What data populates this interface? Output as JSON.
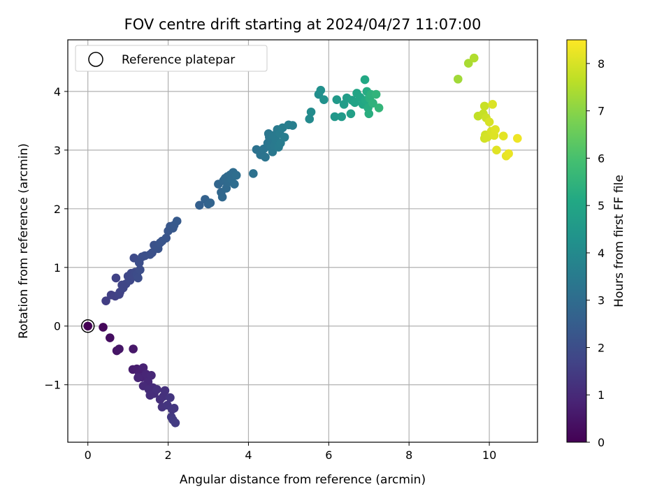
{
  "chart_data": {
    "type": "scatter",
    "title": "FOV centre drift starting at 2024/04/27 11:07:00",
    "xlabel": "Angular distance from reference (arcmin)",
    "ylabel": "Rotation from reference (arcmin)",
    "xlim": [
      -0.5,
      11.2
    ],
    "ylim": [
      -1.98,
      4.88
    ],
    "x_ticks": [
      0,
      2,
      4,
      6,
      8,
      10
    ],
    "y_ticks": [
      -1,
      0,
      1,
      2,
      3,
      4
    ],
    "x_tick_labels": [
      "0",
      "2",
      "4",
      "6",
      "8",
      "10"
    ],
    "y_tick_labels": [
      "−1",
      "0",
      "1",
      "2",
      "3",
      "4"
    ],
    "grid": true,
    "legend": {
      "position": "upper-left",
      "entries": [
        "Reference platepar"
      ]
    },
    "reference_point": {
      "x": 0,
      "y": 0,
      "label": "Reference platepar",
      "marker": "open circle"
    },
    "colorbar": {
      "label": "Hours from first FF file",
      "min": 0,
      "max": 8.5,
      "ticks": [
        0,
        1,
        2,
        3,
        4,
        5,
        6,
        7,
        8
      ],
      "tick_labels": [
        "0",
        "1",
        "2",
        "3",
        "4",
        "5",
        "6",
        "7",
        "8"
      ],
      "colormap": "viridis"
    },
    "points": [
      [
        0.0,
        0.0,
        0.0
      ],
      [
        0.38,
        -0.02,
        0.15
      ],
      [
        0.55,
        -0.2,
        0.3
      ],
      [
        0.72,
        -0.42,
        0.45
      ],
      [
        0.78,
        -0.39,
        0.5
      ],
      [
        1.13,
        -0.39,
        0.55
      ],
      [
        1.12,
        -0.74,
        0.65
      ],
      [
        1.22,
        -0.73,
        0.7
      ],
      [
        1.28,
        -0.8,
        0.75
      ],
      [
        1.38,
        -0.71,
        0.8
      ],
      [
        1.35,
        -0.87,
        0.85
      ],
      [
        1.25,
        -0.88,
        0.9
      ],
      [
        1.45,
        -0.82,
        0.9
      ],
      [
        1.5,
        -0.95,
        0.95
      ],
      [
        1.58,
        -0.84,
        0.95
      ],
      [
        1.38,
        -1.02,
        1.0
      ],
      [
        1.52,
        -1.08,
        1.05
      ],
      [
        1.62,
        -1.05,
        1.05
      ],
      [
        1.55,
        -1.18,
        1.1
      ],
      [
        1.65,
        -1.15,
        1.1
      ],
      [
        1.72,
        -1.08,
        1.15
      ],
      [
        1.8,
        -1.25,
        1.15
      ],
      [
        1.88,
        -1.2,
        1.2
      ],
      [
        1.92,
        -1.1,
        1.2
      ],
      [
        1.85,
        -1.38,
        1.25
      ],
      [
        1.98,
        -1.35,
        1.3
      ],
      [
        2.05,
        -1.22,
        1.3
      ],
      [
        2.1,
        -1.42,
        1.35
      ],
      [
        2.15,
        -1.4,
        1.35
      ],
      [
        2.08,
        -1.55,
        1.4
      ],
      [
        2.12,
        -1.6,
        1.45
      ],
      [
        2.18,
        -1.65,
        1.5
      ],
      [
        0.45,
        0.43,
        1.55
      ],
      [
        0.58,
        0.53,
        1.6
      ],
      [
        0.68,
        0.51,
        1.62
      ],
      [
        0.7,
        0.82,
        1.65
      ],
      [
        0.78,
        0.54,
        1.67
      ],
      [
        0.8,
        0.58,
        1.7
      ],
      [
        0.85,
        0.7,
        1.72
      ],
      [
        0.88,
        0.65,
        1.75
      ],
      [
        0.95,
        0.72,
        1.77
      ],
      [
        1.0,
        0.85,
        1.8
      ],
      [
        1.05,
        0.78,
        1.82
      ],
      [
        1.08,
        0.9,
        1.85
      ],
      [
        1.12,
        0.85,
        1.87
      ],
      [
        1.18,
        0.92,
        1.9
      ],
      [
        1.15,
        1.16,
        1.92
      ],
      [
        1.22,
        0.88,
        1.95
      ],
      [
        1.25,
        0.82,
        1.97
      ],
      [
        1.3,
        0.96,
        2.0
      ],
      [
        1.28,
        1.08,
        2.02
      ],
      [
        1.35,
        1.18,
        2.05
      ],
      [
        1.42,
        1.2,
        2.08
      ],
      [
        1.55,
        1.22,
        2.1
      ],
      [
        1.6,
        1.25,
        2.12
      ],
      [
        1.65,
        1.38,
        2.15
      ],
      [
        1.75,
        1.32,
        2.18
      ],
      [
        1.8,
        1.42,
        2.2
      ],
      [
        1.85,
        1.45,
        2.22
      ],
      [
        1.95,
        1.5,
        2.25
      ],
      [
        2.0,
        1.62,
        2.28
      ],
      [
        2.05,
        1.7,
        2.3
      ],
      [
        2.12,
        1.67,
        2.33
      ],
      [
        2.15,
        1.72,
        2.35
      ],
      [
        2.22,
        1.79,
        2.38
      ],
      [
        2.78,
        2.06,
        2.6
      ],
      [
        2.92,
        2.16,
        2.65
      ],
      [
        3.0,
        2.08,
        2.7
      ],
      [
        3.05,
        2.1,
        2.72
      ],
      [
        3.25,
        2.42,
        2.8
      ],
      [
        3.32,
        2.28,
        2.82
      ],
      [
        3.35,
        2.2,
        2.84
      ],
      [
        3.38,
        2.48,
        2.86
      ],
      [
        3.42,
        2.52,
        2.88
      ],
      [
        3.45,
        2.35,
        2.9
      ],
      [
        3.48,
        2.55,
        2.92
      ],
      [
        3.5,
        2.46,
        2.94
      ],
      [
        3.55,
        2.58,
        2.96
      ],
      [
        3.58,
        2.5,
        2.98
      ],
      [
        3.62,
        2.62,
        3.0
      ],
      [
        3.65,
        2.42,
        3.02
      ],
      [
        3.7,
        2.57,
        3.05
      ],
      [
        4.12,
        2.6,
        3.15
      ],
      [
        4.2,
        3.01,
        3.2
      ],
      [
        4.3,
        2.92,
        3.22
      ],
      [
        4.38,
        3.02,
        3.25
      ],
      [
        4.42,
        2.88,
        3.27
      ],
      [
        4.48,
        3.12,
        3.3
      ],
      [
        4.5,
        3.28,
        3.32
      ],
      [
        4.52,
        3.22,
        3.34
      ],
      [
        4.55,
        3.05,
        3.36
      ],
      [
        4.58,
        3.15,
        3.38
      ],
      [
        4.6,
        2.97,
        3.4
      ],
      [
        4.62,
        3.25,
        3.42
      ],
      [
        4.65,
        3.08,
        3.44
      ],
      [
        4.68,
        3.18,
        3.46
      ],
      [
        4.72,
        3.35,
        3.48
      ],
      [
        4.75,
        3.05,
        3.5
      ],
      [
        4.78,
        3.28,
        3.52
      ],
      [
        4.8,
        3.12,
        3.54
      ],
      [
        4.85,
        3.38,
        3.56
      ],
      [
        4.9,
        3.22,
        3.58
      ],
      [
        5.0,
        3.43,
        3.6
      ],
      [
        5.1,
        3.42,
        3.62
      ],
      [
        5.52,
        3.53,
        4.0
      ],
      [
        5.56,
        3.65,
        4.05
      ],
      [
        5.75,
        3.95,
        4.15
      ],
      [
        5.8,
        4.02,
        4.2
      ],
      [
        5.88,
        3.86,
        4.25
      ],
      [
        6.15,
        3.57,
        4.5
      ],
      [
        6.2,
        3.86,
        4.55
      ],
      [
        6.32,
        3.57,
        4.6
      ],
      [
        6.38,
        3.78,
        4.65
      ],
      [
        6.45,
        3.89,
        4.7
      ],
      [
        6.55,
        3.62,
        4.75
      ],
      [
        6.58,
        3.85,
        4.8
      ],
      [
        6.65,
        3.81,
        4.9
      ],
      [
        6.7,
        3.97,
        4.95
      ],
      [
        6.78,
        3.9,
        5.0
      ],
      [
        6.85,
        3.78,
        5.05
      ],
      [
        6.9,
        4.2,
        5.1
      ],
      [
        6.92,
        3.85,
        5.15
      ],
      [
        6.95,
        4.0,
        5.2
      ],
      [
        6.98,
        3.72,
        5.25
      ],
      [
        7.0,
        3.62,
        5.3
      ],
      [
        7.02,
        3.88,
        5.35
      ],
      [
        7.05,
        3.95,
        5.4
      ],
      [
        7.1,
        3.8,
        5.45
      ],
      [
        7.18,
        3.95,
        5.5
      ],
      [
        7.25,
        3.72,
        5.55
      ],
      [
        9.22,
        4.21,
        7.3
      ],
      [
        9.48,
        4.48,
        7.4
      ],
      [
        9.62,
        4.57,
        7.5
      ],
      [
        9.72,
        3.58,
        7.7
      ],
      [
        9.85,
        3.62,
        7.75
      ],
      [
        9.88,
        3.75,
        7.8
      ],
      [
        9.92,
        3.55,
        7.85
      ],
      [
        9.9,
        3.26,
        7.9
      ],
      [
        9.88,
        3.2,
        7.92
      ],
      [
        9.95,
        3.22,
        7.95
      ],
      [
        10.0,
        3.48,
        8.0
      ],
      [
        10.05,
        3.32,
        8.02
      ],
      [
        10.08,
        3.78,
        8.05
      ],
      [
        10.12,
        3.25,
        8.08
      ],
      [
        10.15,
        3.35,
        8.1
      ],
      [
        10.18,
        3.0,
        8.12
      ],
      [
        10.35,
        3.24,
        8.15
      ],
      [
        10.42,
        2.9,
        8.2
      ],
      [
        10.48,
        2.94,
        8.25
      ],
      [
        10.7,
        3.2,
        8.3
      ]
    ]
  }
}
